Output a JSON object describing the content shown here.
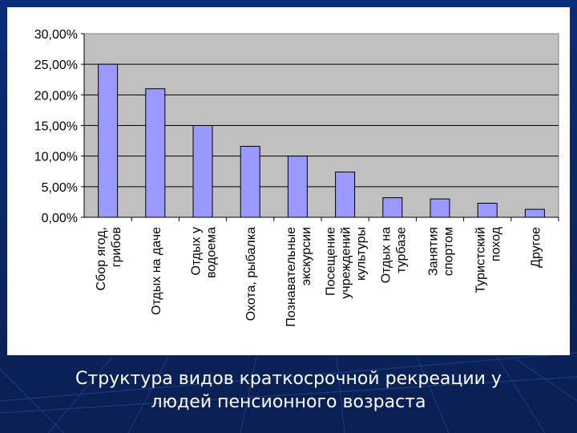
{
  "slide": {
    "caption_line1": "Структура видов краткосрочной рекреации у",
    "caption_line2": "людей пенсионного возраста",
    "background_color": "#0b2a6e",
    "caption_color": "#ffffff"
  },
  "chart_data": {
    "type": "bar",
    "title": "",
    "xlabel": "",
    "ylabel": "",
    "ylim": [
      0,
      0.3
    ],
    "y_ticks": [
      "0,00%",
      "5,00%",
      "10,00%",
      "15,00%",
      "20,00%",
      "25,00%",
      "30,00%"
    ],
    "grid": true,
    "plot_area_color": "#c0c0c0",
    "bar_color": "#9999ff",
    "categories": [
      [
        "Сбор ягод,",
        "грибов"
      ],
      [
        "Отдых на даче"
      ],
      [
        "Отдых у",
        "водоема"
      ],
      [
        "Охота, рыбалка"
      ],
      [
        "Познавательные",
        "экскурсии"
      ],
      [
        "Посещение",
        "учреждений",
        "культуры"
      ],
      [
        "Отдых на",
        "турбазе"
      ],
      [
        "Занятия",
        "спортом"
      ],
      [
        "Туристский",
        "поход"
      ],
      [
        "Другое"
      ]
    ],
    "values": [
      0.25,
      0.21,
      0.15,
      0.116,
      0.1,
      0.074,
      0.032,
      0.03,
      0.023,
      0.013
    ]
  }
}
